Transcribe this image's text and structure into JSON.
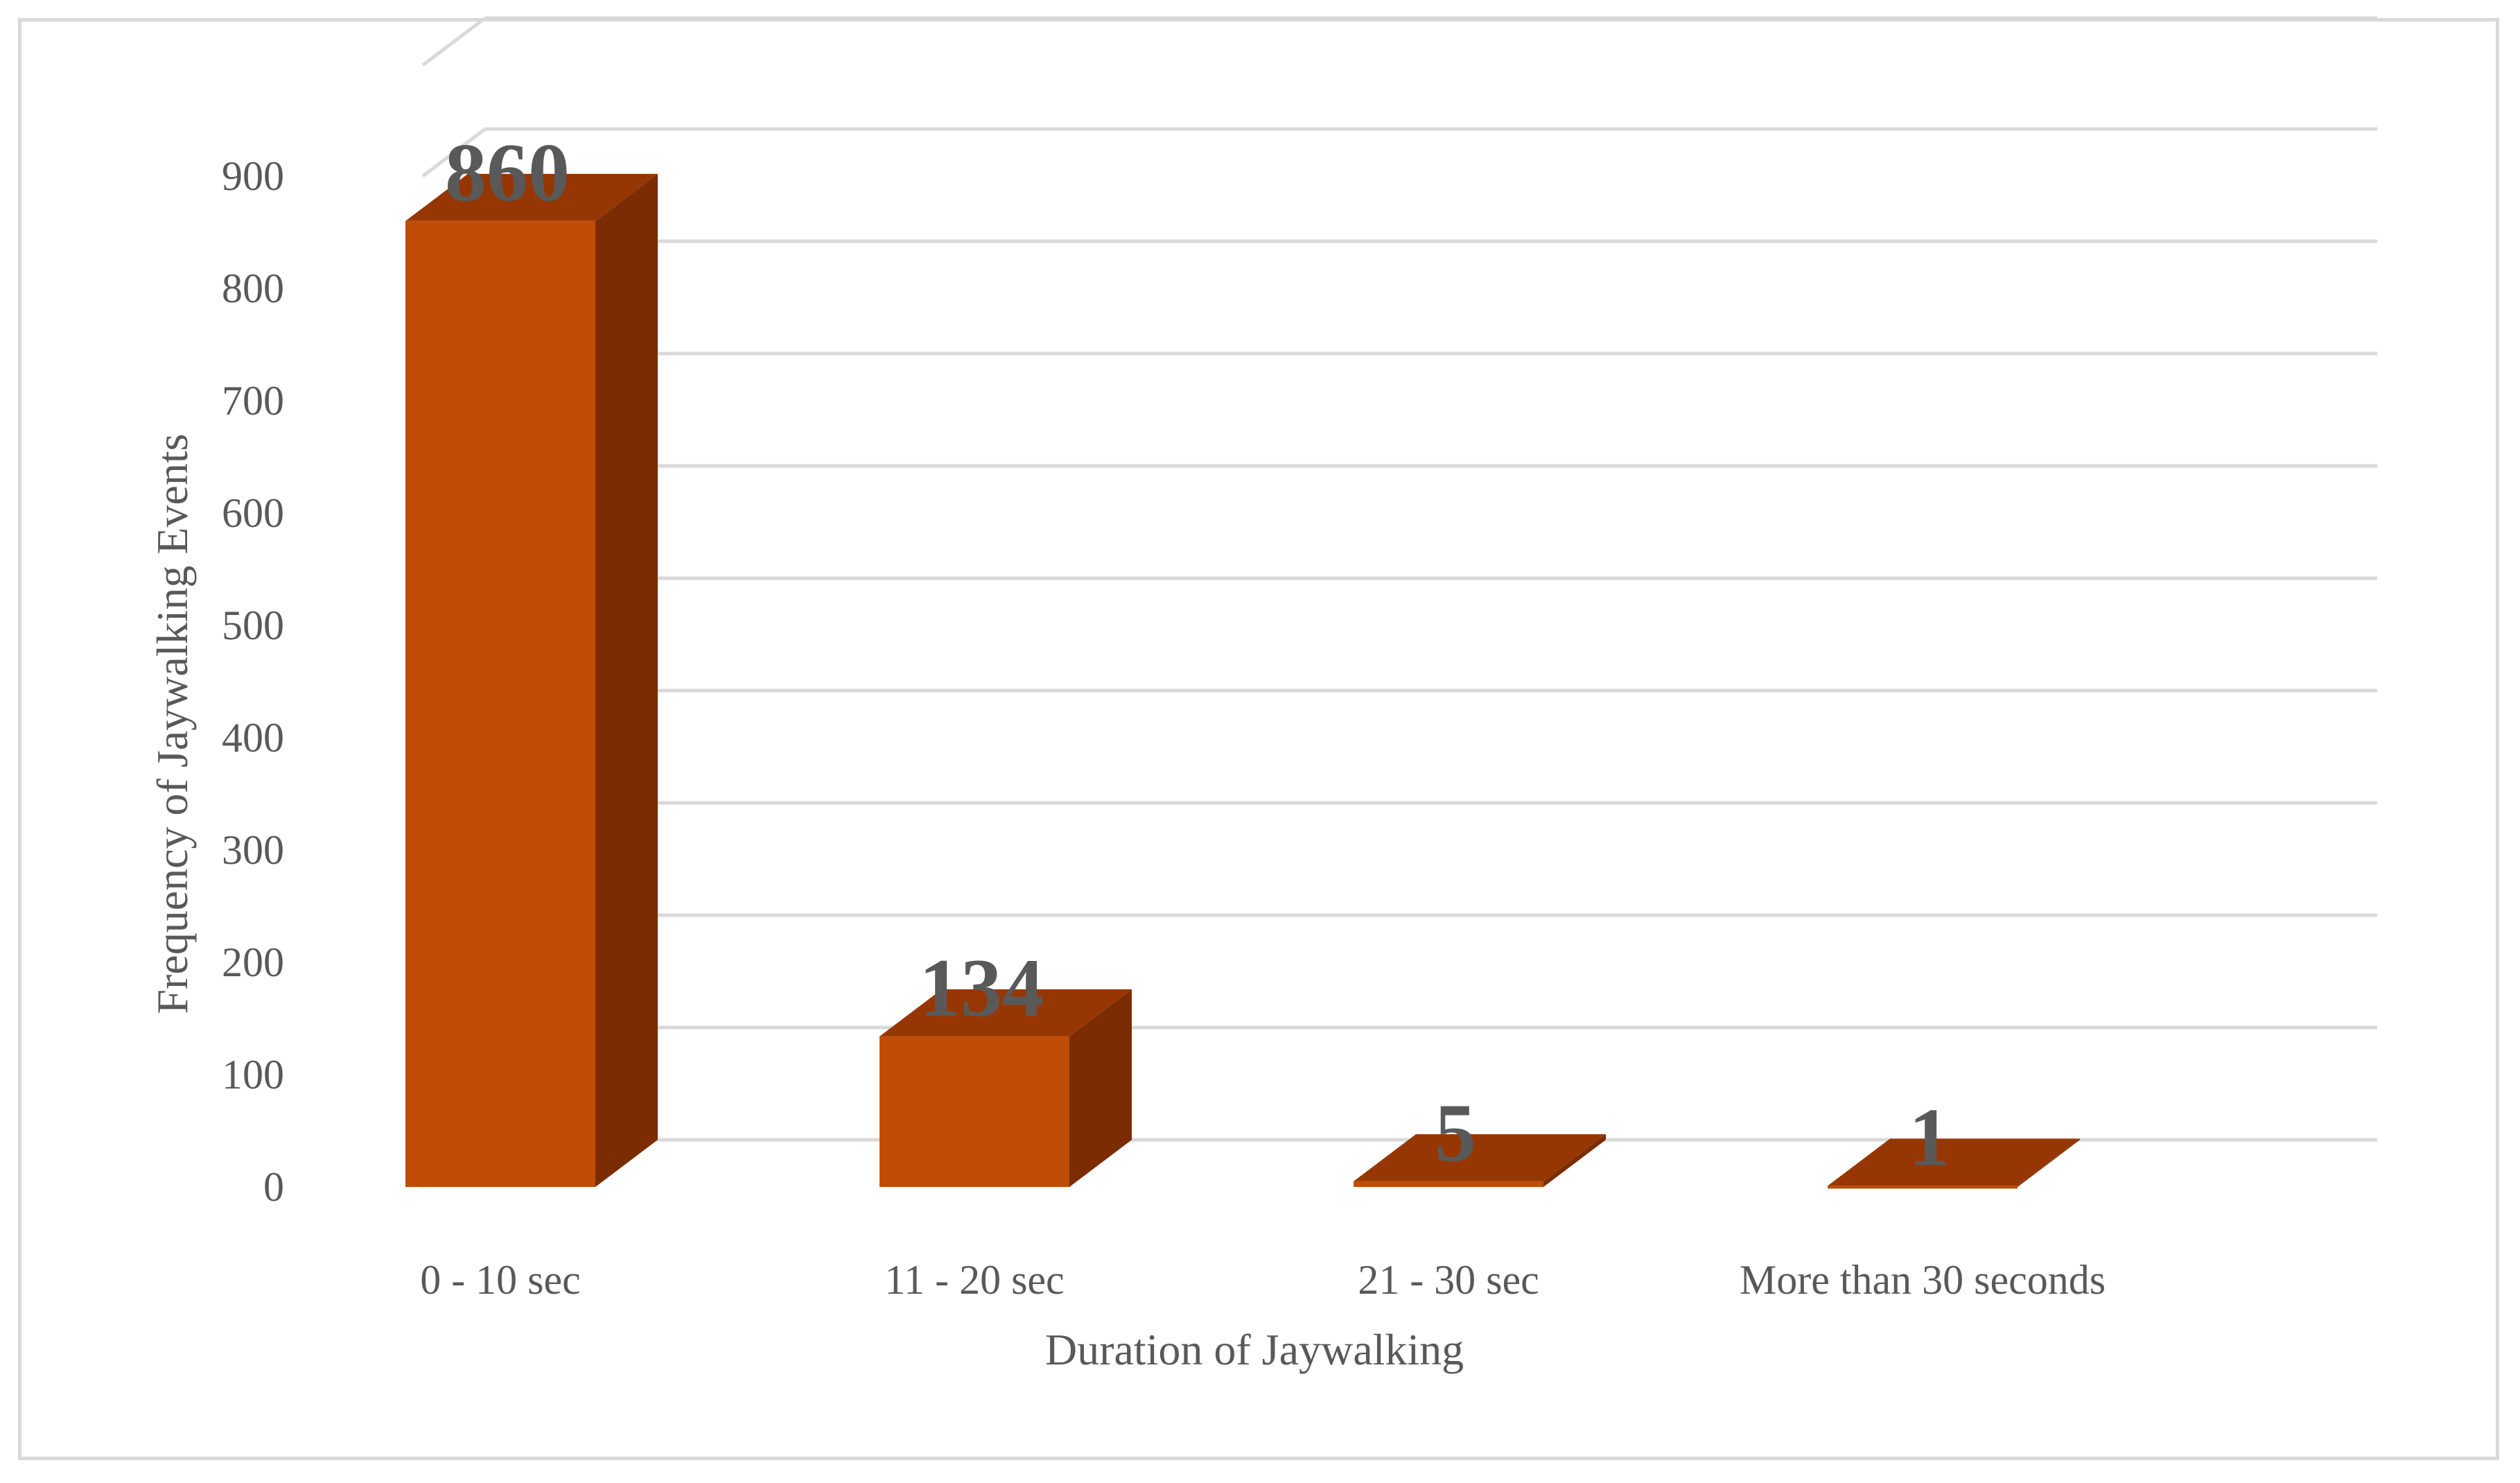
{
  "chart_data": {
    "type": "bar",
    "style": "3d-column",
    "categories": [
      "0 - 10 sec",
      "11 - 20 sec",
      "21 - 30 sec",
      "More than 30 seconds"
    ],
    "values": [
      860,
      134,
      5,
      1
    ],
    "data_labels": [
      "860",
      "134",
      "5",
      "1"
    ],
    "xlabel": "Duration of Jaywalking",
    "ylabel": "Frequency of Jaywalking Events",
    "ylim": [
      0,
      900
    ],
    "yticks": [
      0,
      100,
      200,
      300,
      400,
      500,
      600,
      700,
      800,
      900
    ],
    "ytick_labels": [
      "0",
      "100",
      "200",
      "300",
      "400",
      "500",
      "600",
      "700",
      "800",
      "900"
    ],
    "grid": true,
    "legend": "none",
    "colors": {
      "front": "#c04d05",
      "side": "#7b2c02",
      "top": "#963703",
      "grid": "#d9d9d9",
      "text": "#595959"
    }
  }
}
